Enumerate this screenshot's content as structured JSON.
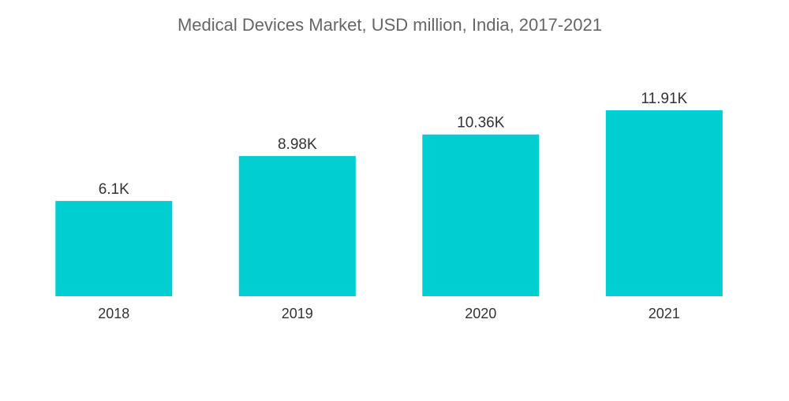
{
  "chart_data": {
    "type": "bar",
    "title": "Medical Devices Market, USD million, India, 2017-2021",
    "categories": [
      "2018",
      "2019",
      "2020",
      "2021"
    ],
    "values": [
      6100,
      8980,
      10360,
      11910
    ],
    "data_labels": [
      "6.1K",
      "8.98K",
      "10.36K",
      "11.91K"
    ],
    "xlabel": "",
    "ylabel": "",
    "ylim": [
      0,
      11910
    ],
    "grid": false,
    "legend": "none",
    "colors": {
      "bar": "#00CED1",
      "title": "#666666",
      "label": "#333333"
    }
  }
}
